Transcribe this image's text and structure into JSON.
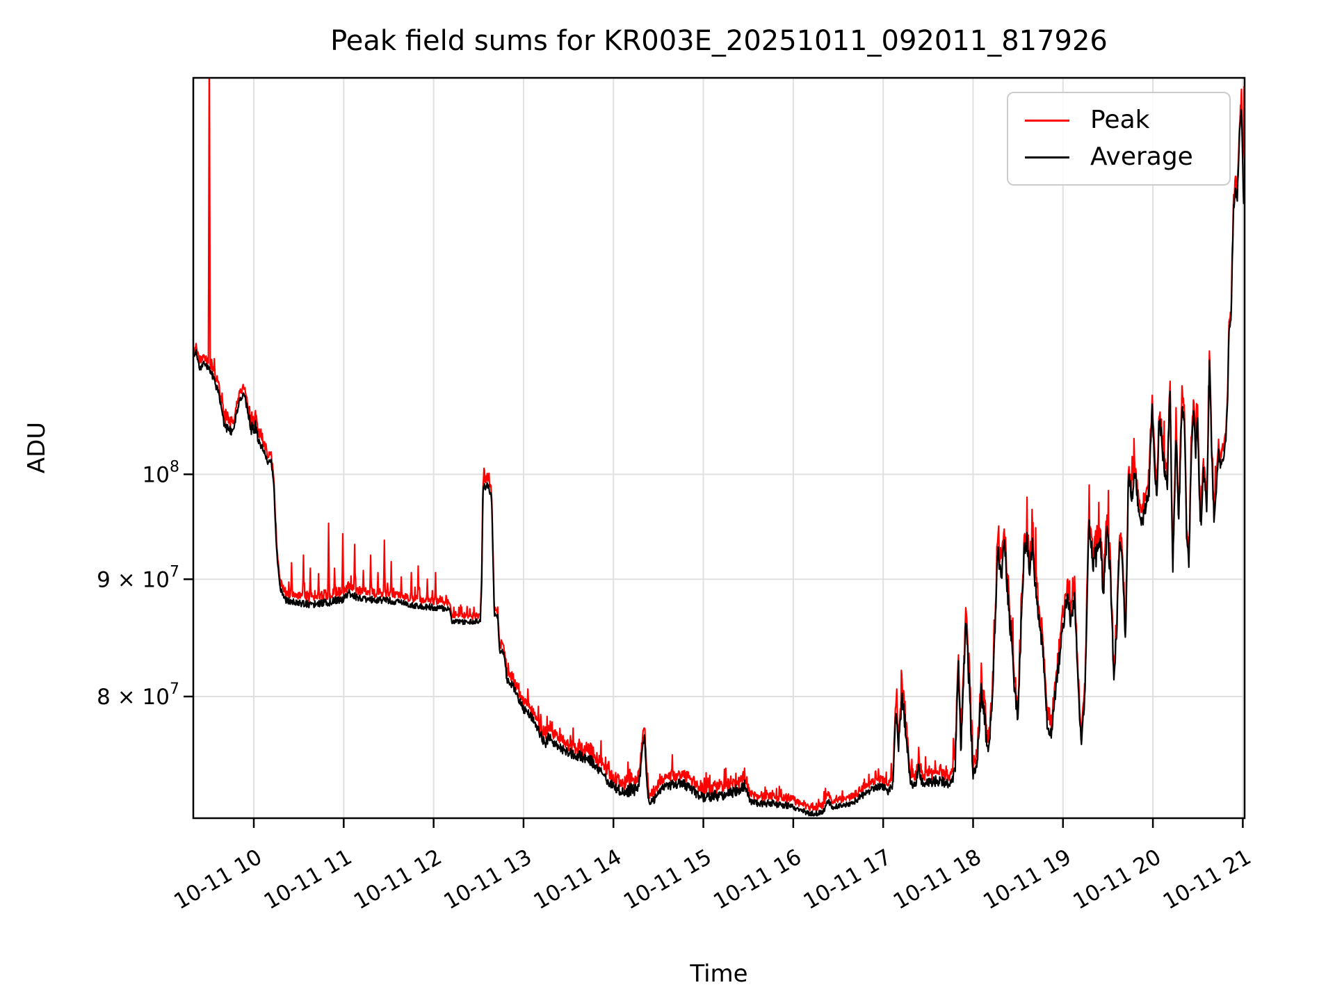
{
  "chart_data": {
    "type": "line",
    "title": "Peak field sums for KR003E_20251011_092011_817926",
    "xlabel": "Time",
    "ylabel": "ADU",
    "background": "#ffffff",
    "grid_color": "#e0e0e0",
    "spine_color": "#000000",
    "grid_on": true,
    "legend_position": "upper right",
    "series": [
      {
        "name": "Peak",
        "color": "#ff0000"
      },
      {
        "name": "Average",
        "color": "#000000"
      }
    ],
    "x_axis": {
      "unit": "time of day on 2025-10-11 (hours)",
      "range_hours": [
        9.327,
        21.02
      ],
      "ticks": [
        {
          "hour": 10,
          "label": "10-11 10"
        },
        {
          "hour": 11,
          "label": "10-11 11"
        },
        {
          "hour": 12,
          "label": "10-11 12"
        },
        {
          "hour": 13,
          "label": "10-11 13"
        },
        {
          "hour": 14,
          "label": "10-11 14"
        },
        {
          "hour": 15,
          "label": "10-11 15"
        },
        {
          "hour": 16,
          "label": "10-11 16"
        },
        {
          "hour": 17,
          "label": "10-11 17"
        },
        {
          "hour": 18,
          "label": "10-11 18"
        },
        {
          "hour": 19,
          "label": "10-11 19"
        },
        {
          "hour": 20,
          "label": "10-11 20"
        },
        {
          "hour": 21,
          "label": "10-11 21"
        }
      ]
    },
    "y_axis": {
      "scale": "log",
      "unit": "ADU",
      "range": [
        70800000,
        148900000
      ],
      "ticks": [
        {
          "value": 80000000,
          "mantissa": "8 × 10",
          "exponent": "7"
        },
        {
          "value": 90000000,
          "mantissa": "9 × 10",
          "exponent": "7"
        },
        {
          "value": 100000000,
          "mantissa": "10",
          "exponent": "8"
        }
      ]
    },
    "sampling": {
      "n_samples": 2300,
      "noise_seed": 20251011
    },
    "average_keyframes_t_ve6_jitterpct": [
      [
        9.327,
        112.5,
        0.25
      ],
      [
        9.36,
        113.2,
        0.3
      ],
      [
        9.4,
        111.0,
        0.35
      ],
      [
        9.44,
        111.8,
        0.3
      ],
      [
        9.5,
        111.2,
        0.35
      ],
      [
        9.56,
        110.0,
        0.5
      ],
      [
        9.62,
        108.0,
        0.6
      ],
      [
        9.67,
        105.5,
        0.8
      ],
      [
        9.72,
        104.5,
        0.7
      ],
      [
        9.76,
        104.2,
        0.5
      ],
      [
        9.8,
        106.0,
        0.5
      ],
      [
        9.84,
        107.8,
        0.4
      ],
      [
        9.89,
        108.4,
        0.4
      ],
      [
        9.93,
        106.8,
        0.5
      ],
      [
        9.97,
        104.6,
        0.8
      ],
      [
        10.02,
        104.9,
        0.8
      ],
      [
        10.06,
        103.2,
        0.5
      ],
      [
        10.11,
        102.6,
        0.4
      ],
      [
        10.15,
        101.2,
        0.35
      ],
      [
        10.19,
        101.4,
        0.3
      ],
      [
        10.22,
        99.5,
        0.3
      ],
      [
        10.25,
        93.0,
        0.3
      ],
      [
        10.29,
        89.3,
        0.35
      ],
      [
        10.34,
        88.2,
        0.4
      ],
      [
        10.45,
        87.9,
        0.45
      ],
      [
        10.62,
        87.8,
        0.5
      ],
      [
        10.8,
        87.9,
        0.5
      ],
      [
        10.98,
        88.2,
        0.5
      ],
      [
        11.06,
        88.8,
        0.5
      ],
      [
        11.14,
        88.4,
        0.45
      ],
      [
        11.3,
        88.2,
        0.45
      ],
      [
        11.5,
        88.1,
        0.4
      ],
      [
        11.65,
        87.9,
        0.4
      ],
      [
        11.82,
        87.6,
        0.4
      ],
      [
        12.0,
        87.5,
        0.4
      ],
      [
        12.12,
        87.4,
        0.35
      ],
      [
        12.18,
        87.3,
        0.3
      ],
      [
        12.2,
        86.3,
        0.3
      ],
      [
        12.35,
        86.2,
        0.3
      ],
      [
        12.52,
        86.3,
        0.3
      ],
      [
        12.535,
        90.0,
        0.4
      ],
      [
        12.55,
        98.6,
        0.45
      ],
      [
        12.6,
        98.9,
        0.45
      ],
      [
        12.645,
        97.8,
        0.35
      ],
      [
        12.66,
        92.0,
        0.3
      ],
      [
        12.675,
        86.9,
        0.3
      ],
      [
        12.715,
        86.7,
        0.3
      ],
      [
        12.73,
        84.0,
        0.5
      ],
      [
        12.79,
        83.2,
        0.5
      ],
      [
        12.815,
        81.3,
        0.5
      ],
      [
        12.875,
        81.0,
        0.5
      ],
      [
        12.92,
        80.2,
        0.5
      ],
      [
        13.0,
        79.0,
        0.5
      ],
      [
        13.1,
        78.3,
        0.5
      ],
      [
        13.2,
        76.8,
        0.6
      ],
      [
        13.24,
        76.2,
        0.6
      ],
      [
        13.28,
        76.8,
        0.6
      ],
      [
        13.38,
        76.1,
        0.6
      ],
      [
        13.5,
        75.6,
        0.7
      ],
      [
        13.62,
        75.4,
        0.7
      ],
      [
        13.74,
        75.1,
        0.7
      ],
      [
        13.82,
        74.5,
        0.6
      ],
      [
        13.92,
        73.6,
        0.6
      ],
      [
        14.0,
        73.1,
        0.6
      ],
      [
        14.08,
        72.7,
        0.7
      ],
      [
        14.18,
        72.8,
        0.85
      ],
      [
        14.27,
        73.0,
        0.85
      ],
      [
        14.3,
        74.0,
        0.8
      ],
      [
        14.325,
        76.3,
        0.8
      ],
      [
        14.35,
        76.6,
        0.8
      ],
      [
        14.375,
        73.0,
        0.6
      ],
      [
        14.4,
        71.9,
        0.5
      ],
      [
        14.46,
        72.2,
        0.55
      ],
      [
        14.55,
        72.9,
        0.6
      ],
      [
        14.65,
        73.25,
        0.6
      ],
      [
        14.78,
        73.3,
        0.6
      ],
      [
        14.9,
        72.7,
        0.6
      ],
      [
        15.0,
        72.3,
        0.6
      ],
      [
        15.1,
        72.4,
        0.7
      ],
      [
        15.22,
        72.5,
        0.7
      ],
      [
        15.34,
        72.7,
        0.7
      ],
      [
        15.42,
        73.0,
        0.7
      ],
      [
        15.47,
        73.2,
        0.7
      ],
      [
        15.51,
        72.1,
        0.5
      ],
      [
        15.62,
        71.9,
        0.5
      ],
      [
        15.78,
        71.85,
        0.45
      ],
      [
        15.95,
        71.7,
        0.4
      ],
      [
        16.05,
        71.5,
        0.4
      ],
      [
        16.18,
        71.1,
        0.35
      ],
      [
        16.28,
        71.15,
        0.35
      ],
      [
        16.34,
        71.4,
        0.4
      ],
      [
        16.385,
        72.1,
        0.4
      ],
      [
        16.43,
        71.6,
        0.35
      ],
      [
        16.55,
        71.7,
        0.35
      ],
      [
        16.68,
        72.0,
        0.4
      ],
      [
        16.8,
        72.6,
        0.45
      ],
      [
        16.92,
        73.05,
        0.45
      ],
      [
        17.0,
        73.1,
        0.45
      ],
      [
        17.06,
        72.7,
        0.45
      ],
      [
        17.11,
        73.3,
        0.5
      ],
      [
        17.14,
        79.3,
        0.9
      ],
      [
        17.17,
        76.0,
        1.0
      ],
      [
        17.21,
        79.9,
        0.9
      ],
      [
        17.25,
        77.5,
        1.2
      ],
      [
        17.3,
        73.4,
        0.6
      ],
      [
        17.36,
        73.2,
        0.6
      ],
      [
        17.395,
        74.6,
        0.7
      ],
      [
        17.43,
        73.4,
        0.6
      ],
      [
        17.52,
        73.5,
        0.7
      ],
      [
        17.64,
        73.45,
        0.7
      ],
      [
        17.74,
        73.3,
        0.55
      ],
      [
        17.8,
        74.2,
        0.9
      ],
      [
        17.835,
        83.2,
        1.0
      ],
      [
        17.865,
        75.5,
        1.0
      ],
      [
        17.92,
        86.9,
        1.0
      ],
      [
        17.955,
        81.0,
        1.5
      ],
      [
        18.0,
        74.0,
        0.9
      ],
      [
        18.045,
        74.8,
        1.0
      ],
      [
        18.09,
        80.6,
        1.5
      ],
      [
        18.13,
        78.2,
        1.5
      ],
      [
        18.17,
        75.2,
        1.0
      ],
      [
        18.22,
        80.5,
        1.5
      ],
      [
        18.275,
        92.8,
        1.2
      ],
      [
        18.315,
        90.2,
        1.5
      ],
      [
        18.35,
        93.2,
        1.0
      ],
      [
        18.395,
        87.5,
        1.5
      ],
      [
        18.43,
        84.5,
        1.4
      ],
      [
        18.465,
        80.2,
        1.0
      ],
      [
        18.5,
        78.0,
        1.2
      ],
      [
        18.53,
        85.0,
        1.5
      ],
      [
        18.565,
        92.5,
        1.4
      ],
      [
        18.6,
        93.6,
        1.0
      ],
      [
        18.63,
        90.8,
        1.5
      ],
      [
        18.66,
        93.4,
        1.0
      ],
      [
        18.695,
        89.2,
        1.5
      ],
      [
        18.73,
        86.2,
        1.2
      ],
      [
        18.78,
        83.6,
        1.0
      ],
      [
        18.825,
        77.6,
        0.8
      ],
      [
        18.87,
        77.2,
        0.8
      ],
      [
        18.93,
        81.2,
        1.0
      ],
      [
        18.99,
        85.2,
        1.2
      ],
      [
        19.045,
        88.6,
        1.0
      ],
      [
        19.09,
        86.2,
        1.2
      ],
      [
        19.13,
        88.2,
        1.0
      ],
      [
        19.17,
        80.5,
        1.0
      ],
      [
        19.205,
        76.3,
        0.6
      ],
      [
        19.245,
        80.5,
        1.0
      ],
      [
        19.29,
        95.6,
        1.0
      ],
      [
        19.33,
        91.2,
        1.5
      ],
      [
        19.37,
        92.3,
        1.5
      ],
      [
        19.415,
        94.2,
        1.1
      ],
      [
        19.45,
        88.3,
        1.5
      ],
      [
        19.49,
        94.6,
        1.0
      ],
      [
        19.53,
        90.2,
        1.5
      ],
      [
        19.565,
        81.2,
        0.8
      ],
      [
        19.6,
        86.0,
        1.2
      ],
      [
        19.63,
        94.2,
        0.9
      ],
      [
        19.66,
        92.2,
        1.0
      ],
      [
        19.695,
        84.0,
        0.8
      ],
      [
        19.73,
        100.6,
        0.9
      ],
      [
        19.765,
        97.4,
        1.0
      ],
      [
        19.8,
        100.3,
        0.9
      ],
      [
        19.84,
        96.6,
        1.0
      ],
      [
        19.88,
        95.6,
        1.1
      ],
      [
        19.92,
        96.6,
        1.1
      ],
      [
        19.96,
        98.6,
        1.0
      ],
      [
        19.99,
        107.6,
        0.9
      ],
      [
        20.02,
        100.1,
        1.1
      ],
      [
        20.045,
        97.4,
        1.0
      ],
      [
        20.07,
        106.1,
        1.0
      ],
      [
        20.1,
        103.1,
        1.1
      ],
      [
        20.13,
        100.6,
        1.1
      ],
      [
        20.16,
        98.8,
        1.0
      ],
      [
        20.19,
        109.6,
        0.8
      ],
      [
        20.22,
        90.6,
        0.9
      ],
      [
        20.26,
        104.6,
        0.9
      ],
      [
        20.285,
        94.6,
        1.0
      ],
      [
        20.32,
        106.6,
        0.9
      ],
      [
        20.35,
        106.1,
        0.9
      ],
      [
        20.375,
        94.1,
        0.9
      ],
      [
        20.4,
        91.1,
        0.8
      ],
      [
        20.43,
        103.1,
        0.9
      ],
      [
        20.455,
        107.1,
        0.9
      ],
      [
        20.475,
        101.1,
        1.0
      ],
      [
        20.495,
        107.1,
        0.9
      ],
      [
        20.515,
        98.1,
        1.0
      ],
      [
        20.535,
        94.6,
        0.9
      ],
      [
        20.56,
        100.1,
        0.9
      ],
      [
        20.58,
        99.1,
        0.9
      ],
      [
        20.6,
        96.1,
        0.8
      ],
      [
        20.63,
        112.6,
        0.7
      ],
      [
        20.66,
        100.1,
        0.9
      ],
      [
        20.68,
        95.6,
        0.8
      ],
      [
        20.71,
        99.1,
        0.8
      ],
      [
        20.73,
        102.1,
        0.8
      ],
      [
        20.755,
        100.6,
        0.8
      ],
      [
        20.78,
        101.6,
        0.7
      ],
      [
        20.81,
        103.1,
        0.6
      ],
      [
        20.835,
        109.0,
        0.5
      ],
      [
        20.845,
        115.8,
        0.5
      ],
      [
        20.87,
        116.6,
        0.5
      ],
      [
        20.885,
        125.1,
        0.7
      ],
      [
        20.9,
        131.1,
        0.8
      ],
      [
        20.92,
        133.6,
        0.9
      ],
      [
        20.94,
        132.1,
        0.9
      ],
      [
        20.955,
        138.1,
        0.7
      ],
      [
        20.97,
        142.1,
        0.7
      ],
      [
        20.985,
        143.6,
        0.7
      ],
      [
        21.0,
        136.0,
        0.9
      ],
      [
        21.01,
        131.5,
        0.8
      ],
      [
        21.02,
        134.6,
        0.7
      ]
    ],
    "peak_spikes_t_ve6": [
      [
        9.505,
        155
      ],
      [
        10.42,
        91.5
      ],
      [
        10.55,
        92.2
      ],
      [
        10.63,
        91.0
      ],
      [
        10.72,
        90.5
      ],
      [
        10.83,
        95.2
      ],
      [
        10.9,
        91.0
      ],
      [
        10.99,
        94.2
      ],
      [
        11.12,
        93.2
      ],
      [
        11.22,
        90.8
      ],
      [
        11.3,
        92.2
      ],
      [
        11.38,
        90.6
      ],
      [
        11.45,
        93.6
      ],
      [
        11.53,
        91.6
      ],
      [
        11.64,
        90.2
      ],
      [
        11.75,
        90.6
      ],
      [
        11.83,
        91.2
      ],
      [
        11.93,
        90.0
      ],
      [
        12.02,
        90.6
      ],
      [
        12.3,
        87.7
      ],
      [
        12.45,
        87.5
      ],
      [
        12.56,
        100.6
      ],
      [
        12.615,
        100.1
      ],
      [
        13.05,
        80.6
      ],
      [
        13.24,
        77.6
      ],
      [
        13.42,
        77.0
      ],
      [
        13.55,
        77.5
      ],
      [
        13.7,
        76.4
      ],
      [
        13.87,
        75.2
      ],
      [
        14.05,
        74.0
      ],
      [
        14.16,
        74.9
      ],
      [
        14.33,
        77.3
      ],
      [
        14.52,
        74.0
      ],
      [
        14.65,
        74.4
      ],
      [
        14.82,
        74.2
      ],
      [
        15.05,
        73.7
      ],
      [
        15.28,
        73.6
      ],
      [
        15.44,
        74.0
      ],
      [
        15.7,
        72.8
      ],
      [
        16.0,
        72.4
      ],
      [
        16.39,
        72.7
      ],
      [
        16.7,
        72.8
      ],
      [
        16.92,
        73.7
      ],
      [
        17.15,
        80.6
      ],
      [
        17.22,
        80.4
      ],
      [
        17.33,
        74.4
      ],
      [
        17.47,
        75.3
      ],
      [
        17.58,
        75.0
      ],
      [
        17.7,
        74.6
      ],
      [
        17.78,
        76.7
      ],
      [
        19.77,
        101.8
      ],
      [
        20.985,
        147.2
      ],
      [
        21.015,
        147.6
      ]
    ]
  }
}
